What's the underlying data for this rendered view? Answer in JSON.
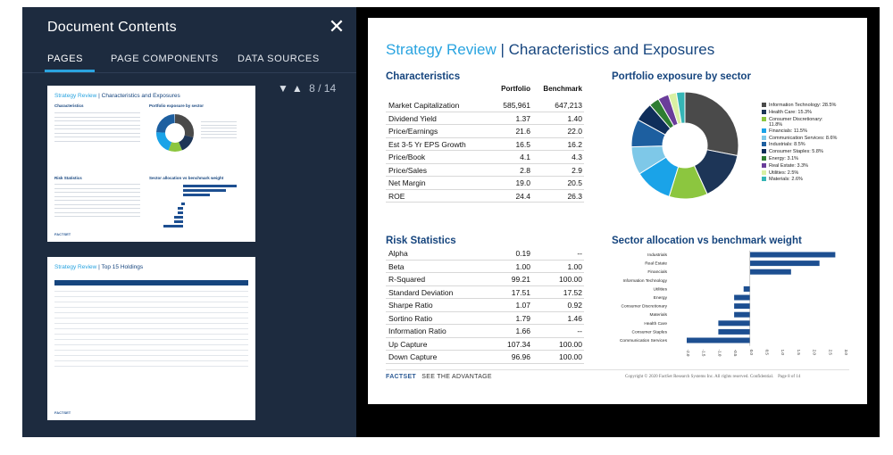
{
  "panel": {
    "title": "Document Contents",
    "close_icon": "✕",
    "tabs": [
      {
        "label": "PAGES",
        "active": true
      },
      {
        "label": "PAGE COMPONENTS",
        "active": false
      },
      {
        "label": "DATA SOURCES",
        "active": false
      }
    ],
    "page_counter": "8 / 14",
    "page_nav_icons": [
      "triangle-down-icon",
      "triangle-up-icon"
    ]
  },
  "thumbnails": [
    {
      "title_accent": "Strategy Review",
      "title_rest": " | Characteristics and Exposures",
      "sections": [
        "Characteristics",
        "Portfolio exposure by sector",
        "Risk Statistics",
        "Sector allocation vs benchmark weight"
      ],
      "footer": "FACTSET"
    },
    {
      "title_accent": "Strategy Review",
      "title_rest": " | Top 15 Holdings",
      "footer": "FACTSET"
    }
  ],
  "page": {
    "title_accent": "Strategy Review",
    "title_separator": " | ",
    "title_rest": "Characteristics and Exposures",
    "characteristics": {
      "title": "Characteristics",
      "col1": "Portfolio",
      "col2": "Benchmark",
      "rows": [
        {
          "label": "Market Capitalization",
          "v1": "585,961",
          "v2": "647,213"
        },
        {
          "label": "Dividend Yield",
          "v1": "1.37",
          "v2": "1.40"
        },
        {
          "label": "Price/Earnings",
          "v1": "21.6",
          "v2": "22.0"
        },
        {
          "label": "Est 3-5 Yr EPS Growth",
          "v1": "16.5",
          "v2": "16.2"
        },
        {
          "label": "Price/Book",
          "v1": "4.1",
          "v2": "4.3"
        },
        {
          "label": "Price/Sales",
          "v1": "2.8",
          "v2": "2.9"
        },
        {
          "label": "Net Margin",
          "v1": "19.0",
          "v2": "20.5"
        },
        {
          "label": "ROE",
          "v1": "24.4",
          "v2": "26.3"
        }
      ]
    },
    "risk": {
      "title": "Risk Statistics",
      "rows": [
        {
          "label": "Alpha",
          "v1": "0.19",
          "v2": "--"
        },
        {
          "label": "Beta",
          "v1": "1.00",
          "v2": "1.00"
        },
        {
          "label": "R-Squared",
          "v1": "99.21",
          "v2": "100.00"
        },
        {
          "label": "Standard Deviation",
          "v1": "17.51",
          "v2": "17.52"
        },
        {
          "label": "Sharpe Ratio",
          "v1": "1.07",
          "v2": "0.92"
        },
        {
          "label": "Sortino Ratio",
          "v1": "1.79",
          "v2": "1.46"
        },
        {
          "label": "Information Ratio",
          "v1": "1.66",
          "v2": "--"
        },
        {
          "label": "Up Capture",
          "v1": "107.34",
          "v2": "100.00"
        },
        {
          "label": "Down Capture",
          "v1": "96.96",
          "v2": "100.00"
        }
      ]
    },
    "footer_brand": "FACTSET",
    "footer_tagline": "SEE THE ADVANTAGE",
    "footer_copyright": "Copyright © 2020 FactSet Research Systems Inc. All rights reserved. Confidential.",
    "footer_page": "Page 8 of 14"
  },
  "chart_data": [
    {
      "type": "pie",
      "title": "Portfolio exposure by sector",
      "categories": [
        "Information Technology",
        "Health Care",
        "Consumer Discretionary",
        "Financials",
        "Communication Services",
        "Industrials",
        "Consumer Staples",
        "Energy",
        "Real Estate",
        "Utilities",
        "Materials"
      ],
      "values": [
        28.5,
        15.3,
        11.8,
        11.5,
        8.6,
        8.5,
        5.8,
        3.1,
        3.3,
        2.5,
        2.6
      ],
      "legend_labels": [
        "Information Technology: 28.5%",
        "Health Care: 15.3%",
        "Consumer Discretionary: 11.8%",
        "Financials: 11.5%",
        "Communication Services: 8.6%",
        "Industrials: 8.5%",
        "Consumer Staples: 5.8%",
        "Energy: 3.1%",
        "Real Estate: 3.3%",
        "Utilities: 2.5%",
        "Materials: 2.6%"
      ],
      "colors": [
        "#4a4a4a",
        "#1d3557",
        "#8cc63f",
        "#1aa3e8",
        "#7ec8e8",
        "#1d5fa0",
        "#0f2e5a",
        "#2e7d32",
        "#6a3d9a",
        "#d9f0a3",
        "#35b5b5"
      ],
      "legend": "right"
    },
    {
      "type": "bar",
      "orientation": "horizontal",
      "title": "Sector allocation vs benchmark weight",
      "categories": [
        "Industrials",
        "Real Estate",
        "Financials",
        "Information Technology",
        "Utilities",
        "Energy",
        "Consumer Discretionary",
        "Materials",
        "Health Care",
        "Consumer Staples",
        "Communication Services"
      ],
      "values": [
        2.7,
        2.2,
        1.3,
        0.0,
        -0.2,
        -0.5,
        -0.5,
        -0.5,
        -1.0,
        -1.0,
        -2.0
      ],
      "xlim": [
        -2.0,
        3.0
      ],
      "tick_labels": [
        "-2.0",
        "-1.5",
        "-1.0",
        "-0.5",
        "0.0",
        "0.5",
        "1.0",
        "1.5",
        "2.0",
        "2.5",
        "3.0"
      ],
      "color": "#1d4f91"
    }
  ]
}
